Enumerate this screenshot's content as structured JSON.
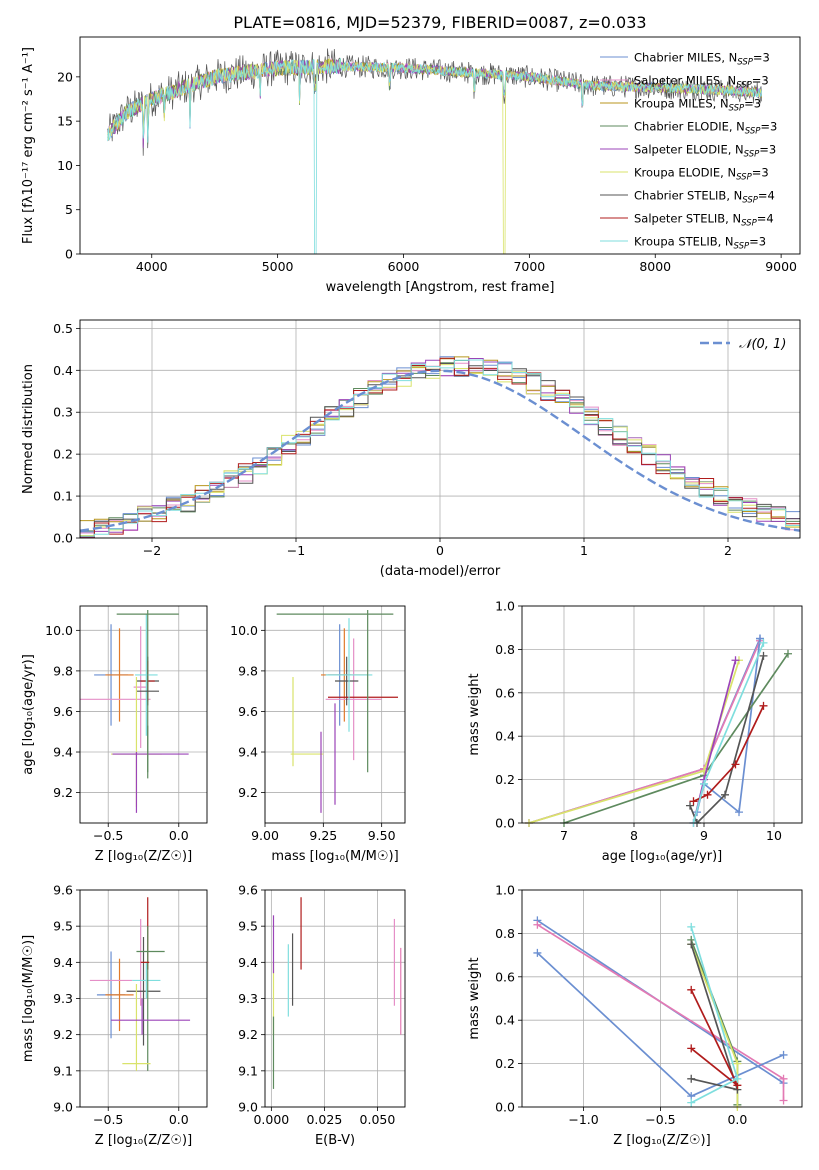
{
  "figure": {
    "title": "PLATE=0816, MJD=52379, FIBERID=0087, z=0.033"
  },
  "colors": [
    "#6b8fd1",
    "#e58fc7",
    "#b8961e",
    "#5e8a5e",
    "#9b44b8",
    "#d9e36b",
    "#555555",
    "#b01c1c",
    "#7fdede"
  ],
  "extra_colors": {
    "orange": "#e07a2a",
    "pink": "#e37ab4",
    "green": "#5e8a5e",
    "blue": "#6b8fd1"
  },
  "chart_data": [
    {
      "id": "spectrum",
      "type": "line",
      "xlabel": "wavelength [Angstrom, rest frame]",
      "ylabel": "Flux [fλ10⁻¹⁷ erg cm⁻² s⁻¹ A⁻¹]",
      "xlim": [
        3430,
        9150
      ],
      "ylim": [
        0,
        24.5
      ],
      "xticks": [
        4000,
        5000,
        6000,
        7000,
        8000,
        9000
      ],
      "yticks": [
        0,
        5,
        10,
        15,
        20
      ],
      "grid": false,
      "legend_position": "upper-right",
      "legend": [
        "Chabrier MILES, N_SSP=3",
        "Salpeter MILES, N_SSP=3",
        "Kroupa MILES, N_SSP=3",
        "Chabrier ELODIE, N_SSP=3",
        "Salpeter ELODIE, N_SSP=3",
        "Kroupa ELODIE, N_SSP=3",
        "Chabrier STELIB, N_SSP=4",
        "Salpeter STELIB, N_SSP=4",
        "Kroupa STELIB, N_SSP=3"
      ],
      "wavelength_range": [
        3650,
        8850
      ],
      "continuum_profile": [
        [
          3650,
          13.5
        ],
        [
          3800,
          16
        ],
        [
          4000,
          17.5
        ],
        [
          4200,
          18.5
        ],
        [
          4500,
          20
        ],
        [
          5000,
          21
        ],
        [
          5500,
          21.2
        ],
        [
          6000,
          21
        ],
        [
          6500,
          20.5
        ],
        [
          7000,
          20
        ],
        [
          7500,
          19
        ],
        [
          8000,
          18.8
        ],
        [
          8500,
          18.5
        ],
        [
          8850,
          18.2
        ]
      ],
      "absorption_features": [
        [
          3934,
          6
        ],
        [
          3969,
          5
        ],
        [
          4101,
          3
        ],
        [
          4304,
          4
        ],
        [
          4861,
          3
        ],
        [
          5175,
          4
        ],
        [
          5300,
          22
        ],
        [
          5890,
          3
        ],
        [
          6563,
          3
        ],
        [
          6800,
          20
        ],
        [
          7420,
          20
        ]
      ]
    },
    {
      "id": "residuals",
      "type": "histogram",
      "xlabel": "(data-model)/error",
      "ylabel": "Normed distribution",
      "xlim": [
        -2.5,
        2.5
      ],
      "ylim": [
        0,
        0.52
      ],
      "xticks": [
        -2,
        -1,
        0,
        1,
        2
      ],
      "yticks": [
        0.0,
        0.1,
        0.2,
        0.3,
        0.4,
        0.5
      ],
      "grid": true,
      "legend": [
        "𝒩(0, 1)"
      ],
      "legend_position": "upper-right",
      "bin_width": 0.1,
      "base_density": "normal"
    },
    {
      "id": "age-vs-Z",
      "type": "scatter",
      "xlabel": "Z [log₁₀(Z/Z☉)]",
      "ylabel": "age  [log₁₀(age/yr)]",
      "xlim": [
        -0.7,
        0.2
      ],
      "ylim": [
        9.05,
        10.12
      ],
      "xticks": [
        -0.5,
        0.0
      ],
      "yticks": [
        9.2,
        9.4,
        9.6,
        9.8,
        10.0
      ],
      "grid": true,
      "errorbars": [
        {
          "x": -0.48,
          "y": 9.78,
          "xerr": 0.12,
          "yerr": 0.25,
          "c": 0
        },
        {
          "x": -0.42,
          "y": 9.78,
          "xerr": 0.1,
          "yerr": 0.23,
          "c": 9
        },
        {
          "x": -0.48,
          "y": 9.66,
          "xerr": 0.28,
          "yerr": 0.0,
          "c": 1
        },
        {
          "x": -0.27,
          "y": 9.72,
          "xerr": 0.05,
          "yerr": 0.3,
          "c": 1
        },
        {
          "x": -0.22,
          "y": 9.75,
          "xerr": 0.08,
          "yerr": 0.12,
          "c": 6
        },
        {
          "x": -0.22,
          "y": 9.75,
          "xerr": 0.05,
          "yerr": 0.1,
          "c": 7
        },
        {
          "x": -0.23,
          "y": 9.78,
          "xerr": 0.08,
          "yerr": 0.3,
          "c": 8
        },
        {
          "x": -0.22,
          "y": 10.08,
          "xerr": 0.22,
          "yerr": 0.0,
          "c": 3
        },
        {
          "x": -0.22,
          "y": 9.7,
          "xerr": 0.0,
          "yerr": 0.4,
          "c": 3
        },
        {
          "x": -0.22,
          "y": 9.7,
          "xerr": 0.08,
          "yerr": 0.0,
          "c": 6
        },
        {
          "x": -0.3,
          "y": 9.39,
          "xerr": 0.18,
          "yerr": 0.0,
          "c": 5
        },
        {
          "x": -0.3,
          "y": 9.45,
          "xerr": 0.0,
          "yerr": 0.32,
          "c": 5
        },
        {
          "x": -0.3,
          "y": 9.25,
          "xerr": 0.0,
          "yerr": 0.15,
          "c": 4
        },
        {
          "x": -0.2,
          "y": 9.39,
          "xerr": 0.27,
          "yerr": 0.0,
          "c": 4
        },
        {
          "x": -0.22,
          "y": 9.4,
          "xerr": 0.0,
          "yerr": 0.13,
          "c": 3
        }
      ]
    },
    {
      "id": "age-vs-mass",
      "type": "scatter",
      "xlabel": "mass [log₁₀(M/M☉)]",
      "ylabel": "",
      "xlim": [
        9.0,
        9.6
      ],
      "ylim": [
        9.05,
        10.12
      ],
      "xticks": [
        9.0,
        9.25,
        9.5
      ],
      "yticks": [
        9.2,
        9.4,
        9.6,
        9.8,
        10.0
      ],
      "grid": true,
      "errorbars": [
        {
          "x": 9.32,
          "y": 9.78,
          "xerr": 0.05,
          "yerr": 0.25,
          "c": 0
        },
        {
          "x": 9.34,
          "y": 9.78,
          "xerr": 0.1,
          "yerr": 0.23,
          "c": 9
        },
        {
          "x": 9.38,
          "y": 9.66,
          "xerr": 0.12,
          "yerr": 0.3,
          "c": 1
        },
        {
          "x": 9.35,
          "y": 9.75,
          "xerr": 0.05,
          "yerr": 0.12,
          "c": 6
        },
        {
          "x": 9.42,
          "y": 9.67,
          "xerr": 0.15,
          "yerr": 0.0,
          "c": 7
        },
        {
          "x": 9.36,
          "y": 9.78,
          "xerr": 0.1,
          "yerr": 0.28,
          "c": 8
        },
        {
          "x": 9.3,
          "y": 10.08,
          "xerr": 0.25,
          "yerr": 0.0,
          "c": 3
        },
        {
          "x": 9.44,
          "y": 9.7,
          "xerr": 0.0,
          "yerr": 0.4,
          "c": 3
        },
        {
          "x": 9.18,
          "y": 9.39,
          "xerr": 0.07,
          "yerr": 0.0,
          "c": 5
        },
        {
          "x": 9.12,
          "y": 9.55,
          "xerr": 0.0,
          "yerr": 0.22,
          "c": 5
        },
        {
          "x": 9.24,
          "y": 9.3,
          "xerr": 0.0,
          "yerr": 0.2,
          "c": 4
        },
        {
          "x": 9.3,
          "y": 9.39,
          "xerr": 0.0,
          "yerr": 0.25,
          "c": 4
        }
      ]
    },
    {
      "id": "weight-vs-age",
      "type": "line",
      "xlabel": "age  [log₁₀(age/yr)]",
      "ylabel": "mass weight",
      "xlim": [
        6.4,
        10.4
      ],
      "ylim": [
        0,
        1.0
      ],
      "xticks": [
        7,
        8,
        9,
        10
      ],
      "yticks": [
        0.0,
        0.2,
        0.4,
        0.6,
        0.8,
        1.0
      ],
      "grid": true,
      "series": [
        {
          "c": 0,
          "points": [
            [
              6.5,
              0.0
            ],
            [
              9.0,
              0.25
            ],
            [
              9.8,
              0.85
            ]
          ]
        },
        {
          "c": 10,
          "points": [
            [
              6.5,
              0.0
            ],
            [
              9.0,
              0.25
            ],
            [
              9.8,
              0.84
            ]
          ]
        },
        {
          "c": 11,
          "points": [
            [
              8.9,
              0.05
            ],
            [
              9.0,
              0.18
            ],
            [
              9.5,
              0.05
            ],
            [
              9.8,
              0.85
            ]
          ]
        },
        {
          "c": 3,
          "points": [
            [
              7.0,
              0.0
            ],
            [
              9.0,
              0.22
            ],
            [
              10.2,
              0.78
            ]
          ]
        },
        {
          "c": 5,
          "points": [
            [
              6.5,
              0.0
            ],
            [
              9.0,
              0.24
            ],
            [
              9.5,
              0.75
            ]
          ]
        },
        {
          "c": 4,
          "points": [
            [
              8.85,
              0.0
            ],
            [
              9.0,
              0.2
            ],
            [
              9.45,
              0.75
            ]
          ]
        },
        {
          "c": 6,
          "points": [
            [
              8.8,
              0.08
            ],
            [
              8.9,
              0.0
            ],
            [
              9.3,
              0.13
            ],
            [
              9.85,
              0.77
            ]
          ]
        },
        {
          "c": 7,
          "points": [
            [
              8.85,
              0.1
            ],
            [
              9.05,
              0.13
            ],
            [
              9.45,
              0.27
            ],
            [
              9.85,
              0.54
            ]
          ]
        },
        {
          "c": 8,
          "points": [
            [
              8.85,
              0.0
            ],
            [
              9.0,
              0.18
            ],
            [
              9.85,
              0.83
            ]
          ]
        }
      ]
    },
    {
      "id": "mass-vs-Z",
      "type": "scatter",
      "xlabel": "Z [log₁₀(Z/Z☉)]",
      "ylabel": "mass [log₁₀(M/M☉)]",
      "xlim": [
        -0.7,
        0.2
      ],
      "ylim": [
        9.0,
        9.6
      ],
      "xticks": [
        -0.5,
        0.0
      ],
      "yticks": [
        9.0,
        9.1,
        9.2,
        9.3,
        9.4,
        9.5,
        9.6
      ],
      "grid": true,
      "errorbars": [
        {
          "x": -0.48,
          "y": 9.31,
          "xerr": 0.1,
          "yerr": 0.12,
          "c": 0
        },
        {
          "x": -0.42,
          "y": 9.31,
          "xerr": 0.1,
          "yerr": 0.1,
          "c": 9
        },
        {
          "x": -0.48,
          "y": 9.35,
          "xerr": 0.15,
          "yerr": 0.0,
          "c": 1
        },
        {
          "x": -0.27,
          "y": 9.4,
          "xerr": 0.0,
          "yerr": 0.12,
          "c": 1
        },
        {
          "x": -0.25,
          "y": 9.32,
          "xerr": 0.12,
          "yerr": 0.15,
          "c": 6
        },
        {
          "x": -0.22,
          "y": 9.48,
          "xerr": 0.0,
          "yerr": 0.1,
          "c": 7
        },
        {
          "x": -0.23,
          "y": 9.35,
          "xerr": 0.1,
          "yerr": 0.05,
          "c": 8
        },
        {
          "x": -0.2,
          "y": 9.43,
          "xerr": 0.1,
          "yerr": 0.0,
          "c": 3
        },
        {
          "x": -0.22,
          "y": 9.3,
          "xerr": 0.0,
          "yerr": 0.2,
          "c": 3
        },
        {
          "x": -0.3,
          "y": 9.12,
          "xerr": 0.1,
          "yerr": 0.0,
          "c": 5
        },
        {
          "x": -0.3,
          "y": 9.22,
          "xerr": 0.0,
          "yerr": 0.12,
          "c": 5
        },
        {
          "x": -0.2,
          "y": 9.24,
          "xerr": 0.28,
          "yerr": 0.0,
          "c": 4
        },
        {
          "x": -0.26,
          "y": 9.25,
          "xerr": 0.0,
          "yerr": 0.05,
          "c": 4
        },
        {
          "x": -0.24,
          "y": 9.4,
          "xerr": 0.03,
          "yerr": 0.0,
          "c": 7
        }
      ]
    },
    {
      "id": "mass-vs-ebv",
      "type": "scatter",
      "xlabel": "E(B-V)",
      "ylabel": "",
      "xlim": [
        -0.003,
        0.063
      ],
      "ylim": [
        9.0,
        9.6
      ],
      "xticks": [
        0.0,
        0.025,
        0.05
      ],
      "xticklabels": [
        "0.000",
        "0.025",
        "0.050"
      ],
      "yticks": [
        9.0,
        9.1,
        9.2,
        9.3,
        9.4,
        9.5,
        9.6
      ],
      "grid": true,
      "errorbars": [
        {
          "x": 0.001,
          "y": 9.3,
          "xerr": 0.0,
          "yerr": 0.1,
          "c": 5
        },
        {
          "x": 0.001,
          "y": 9.15,
          "xerr": 0.0,
          "yerr": 0.1,
          "c": 3
        },
        {
          "x": 0.001,
          "y": 9.45,
          "xerr": 0.0,
          "yerr": 0.08,
          "c": 4
        },
        {
          "x": 0.008,
          "y": 9.35,
          "xerr": 0.0,
          "yerr": 0.1,
          "c": 8
        },
        {
          "x": 0.01,
          "y": 9.38,
          "xerr": 0.0,
          "yerr": 0.1,
          "c": 6
        },
        {
          "x": 0.014,
          "y": 9.48,
          "xerr": 0.0,
          "yerr": 0.1,
          "c": 7
        },
        {
          "x": 0.058,
          "y": 9.4,
          "xerr": 0.0,
          "yerr": 0.12,
          "c": 1
        },
        {
          "x": 0.061,
          "y": 9.32,
          "xerr": 0.0,
          "yerr": 0.12,
          "c": 10
        }
      ]
    },
    {
      "id": "weight-vs-Z",
      "type": "line",
      "xlabel": "Z [log₁₀(Z/Z☉)]",
      "ylabel": "mass weight",
      "xlim": [
        -1.4,
        0.42
      ],
      "ylim": [
        0,
        1.0
      ],
      "xticks": [
        -1.0,
        -0.5,
        0.0
      ],
      "yticks": [
        0.0,
        0.2,
        0.4,
        0.6,
        0.8,
        1.0
      ],
      "grid": true,
      "series": [
        {
          "c": 0,
          "points": [
            [
              -1.3,
              0.86
            ],
            [
              0.3,
              0.11
            ]
          ]
        },
        {
          "c": 10,
          "points": [
            [
              -1.3,
              0.84
            ],
            [
              0.3,
              0.13
            ],
            [
              0.3,
              0.03
            ]
          ]
        },
        {
          "c": 11,
          "points": [
            [
              -1.3,
              0.71
            ],
            [
              -0.3,
              0.05
            ],
            [
              0.3,
              0.24
            ]
          ]
        },
        {
          "c": 3,
          "points": [
            [
              -0.3,
              0.77
            ],
            [
              0.0,
              0.21
            ],
            [
              0.0,
              0.01
            ]
          ]
        },
        {
          "c": 5,
          "points": [
            [
              -0.3,
              0.75
            ],
            [
              0.0,
              0.2
            ],
            [
              0.0,
              0.0
            ]
          ]
        },
        {
          "c": 6,
          "points": [
            [
              -0.3,
              0.13
            ],
            [
              0.0,
              0.08
            ],
            [
              -0.3,
              0.75
            ]
          ]
        },
        {
          "c": 7,
          "points": [
            [
              -0.3,
              0.54
            ],
            [
              0.0,
              0.1
            ],
            [
              -0.3,
              0.27
            ]
          ]
        },
        {
          "c": 8,
          "points": [
            [
              -0.3,
              0.83
            ],
            [
              0.0,
              0.13
            ],
            [
              -0.3,
              0.02
            ]
          ]
        }
      ]
    }
  ]
}
